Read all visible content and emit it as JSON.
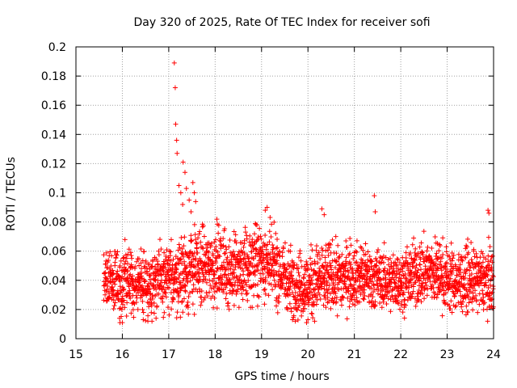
{
  "chart_data": {
    "type": "scatter",
    "title": "Day 320 of 2025, Rate Of TEC Index for receiver sofi",
    "xlabel": "GPS time / hours",
    "ylabel": "ROTI / TECUs",
    "xlim": [
      15,
      24
    ],
    "ylim": [
      0,
      0.2
    ],
    "x_ticks": [
      15,
      16,
      17,
      18,
      19,
      20,
      21,
      22,
      23,
      24
    ],
    "y_ticks": [
      0,
      0.02,
      0.04,
      0.06,
      0.08,
      0.1,
      0.12,
      0.14,
      0.16,
      0.18,
      0.2
    ],
    "x_tick_labels": [
      "15",
      "16",
      "17",
      "18",
      "19",
      "20",
      "21",
      "22",
      "23",
      "24"
    ],
    "y_tick_labels": [
      "0",
      "0.02",
      "0.04",
      "0.06",
      "0.08",
      "0.1",
      "0.12",
      "0.14",
      "0.16",
      "0.18",
      "0.2"
    ],
    "grid": true,
    "marker": "+",
    "marker_color": "#ff0000",
    "series": [
      {
        "name": "ROTI",
        "color": "#ff0000",
        "profile_x": [
          15.6,
          15.8,
          16.0,
          16.2,
          16.4,
          16.6,
          16.8,
          17.0,
          17.2,
          17.4,
          17.6,
          17.8,
          18.0,
          18.2,
          18.4,
          18.6,
          18.8,
          19.0,
          19.2,
          19.4,
          19.6,
          19.8,
          20.0,
          20.2,
          20.4,
          20.6,
          20.8,
          21.0,
          21.2,
          21.4,
          21.6,
          21.8,
          22.0,
          22.2,
          22.4,
          22.6,
          22.8,
          23.0,
          23.2,
          23.4,
          23.6,
          23.8,
          24.0
        ],
        "profile_median": [
          0.04,
          0.04,
          0.038,
          0.038,
          0.039,
          0.038,
          0.041,
          0.04,
          0.044,
          0.046,
          0.048,
          0.049,
          0.05,
          0.049,
          0.046,
          0.046,
          0.052,
          0.055,
          0.05,
          0.045,
          0.04,
          0.037,
          0.036,
          0.04,
          0.041,
          0.042,
          0.043,
          0.044,
          0.043,
          0.041,
          0.04,
          0.04,
          0.039,
          0.042,
          0.045,
          0.047,
          0.045,
          0.041,
          0.039,
          0.04,
          0.04,
          0.04,
          0.04
        ],
        "profile_spread": [
          0.011,
          0.012,
          0.013,
          0.013,
          0.012,
          0.012,
          0.012,
          0.012,
          0.014,
          0.016,
          0.016,
          0.015,
          0.015,
          0.015,
          0.014,
          0.014,
          0.014,
          0.015,
          0.014,
          0.014,
          0.013,
          0.013,
          0.013,
          0.014,
          0.014,
          0.013,
          0.013,
          0.012,
          0.012,
          0.012,
          0.011,
          0.011,
          0.011,
          0.012,
          0.013,
          0.013,
          0.013,
          0.013,
          0.012,
          0.012,
          0.012,
          0.012,
          0.012
        ],
        "outliers": [
          {
            "x": 17.12,
            "y": 0.189
          },
          {
            "x": 17.14,
            "y": 0.172
          },
          {
            "x": 17.15,
            "y": 0.147
          },
          {
            "x": 17.17,
            "y": 0.136
          },
          {
            "x": 17.18,
            "y": 0.127
          },
          {
            "x": 17.22,
            "y": 0.105
          },
          {
            "x": 17.26,
            "y": 0.1
          },
          {
            "x": 17.31,
            "y": 0.121
          },
          {
            "x": 17.35,
            "y": 0.114
          },
          {
            "x": 17.38,
            "y": 0.103
          },
          {
            "x": 17.44,
            "y": 0.095
          },
          {
            "x": 17.52,
            "y": 0.107
          },
          {
            "x": 17.55,
            "y": 0.1
          },
          {
            "x": 17.58,
            "y": 0.094
          },
          {
            "x": 17.48,
            "y": 0.087
          },
          {
            "x": 17.3,
            "y": 0.092
          },
          {
            "x": 21.43,
            "y": 0.098
          },
          {
            "x": 21.45,
            "y": 0.087
          },
          {
            "x": 19.12,
            "y": 0.09
          },
          {
            "x": 19.08,
            "y": 0.088
          },
          {
            "x": 20.3,
            "y": 0.089
          },
          {
            "x": 20.35,
            "y": 0.085
          },
          {
            "x": 23.88,
            "y": 0.088
          },
          {
            "x": 23.9,
            "y": 0.086
          },
          {
            "x": 15.95,
            "y": 0.011
          },
          {
            "x": 16.0,
            "y": 0.011
          },
          {
            "x": 16.45,
            "y": 0.013
          },
          {
            "x": 19.97,
            "y": 0.011
          },
          {
            "x": 20.0,
            "y": 0.013
          },
          {
            "x": 16.55,
            "y": 0.012
          }
        ]
      }
    ]
  }
}
